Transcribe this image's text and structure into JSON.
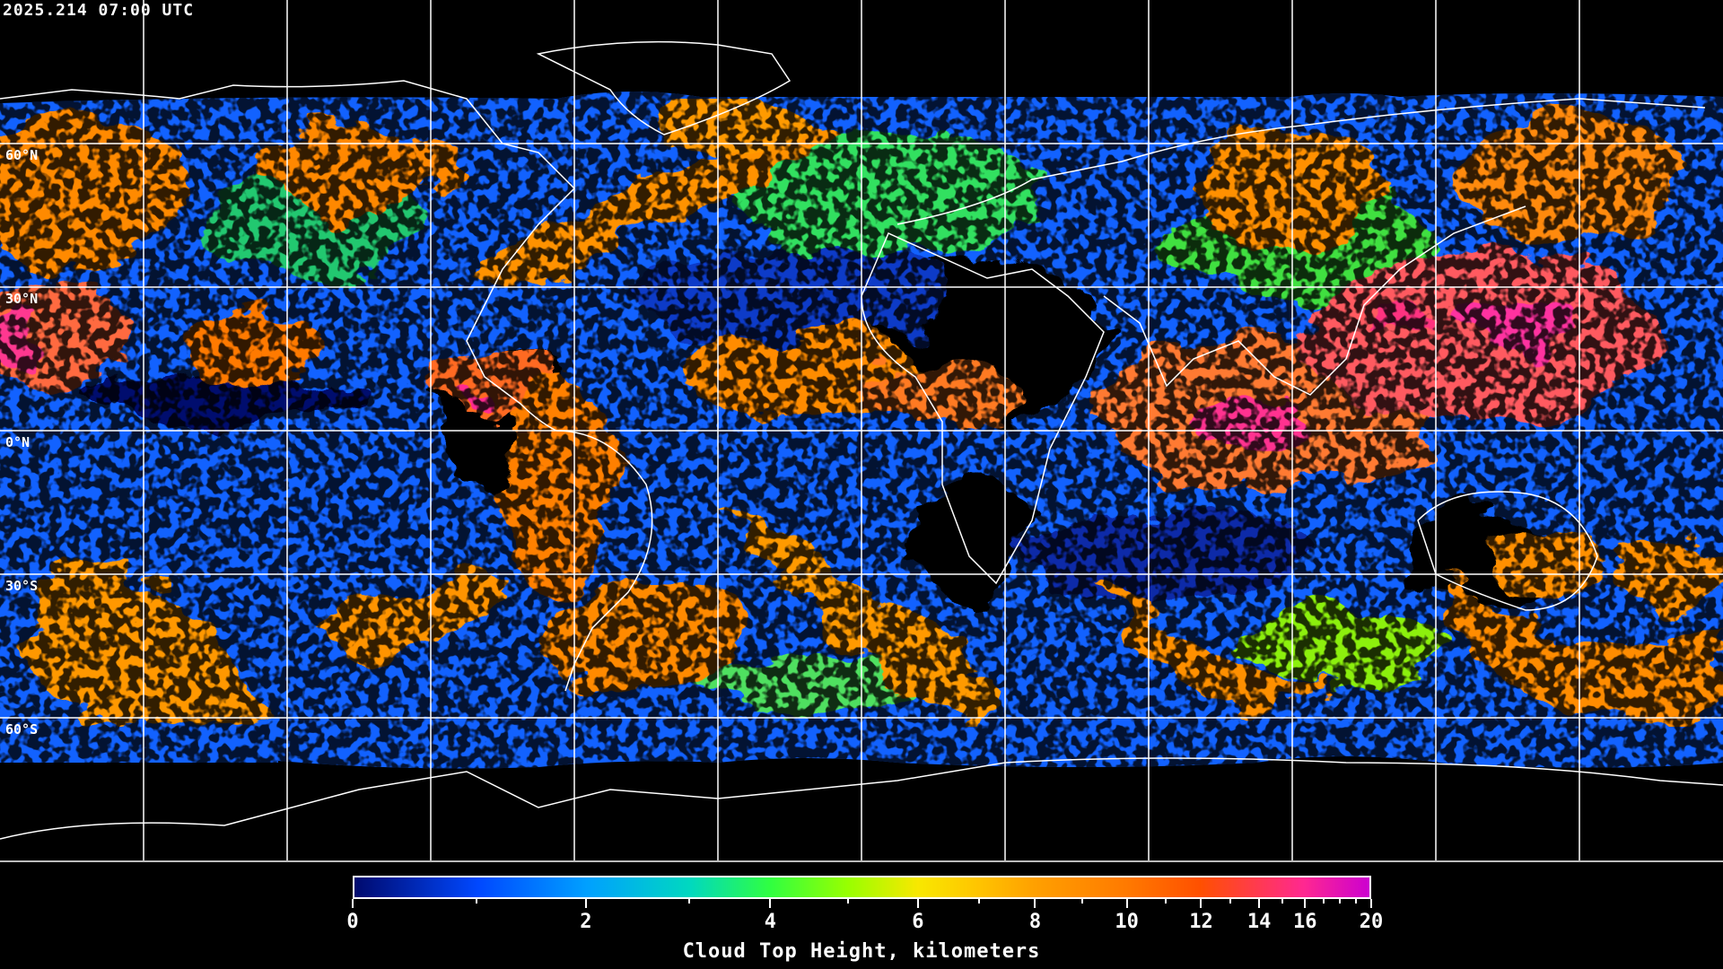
{
  "timestamp": "2025.214 07:00 UTC",
  "map": {
    "projection": "equirectangular",
    "grid_spacing_deg": 30,
    "lat_labels": [
      "60°N",
      "30°N",
      "0°N",
      "30°S",
      "60°S"
    ],
    "lat_values": [
      60,
      30,
      0,
      -30,
      -60
    ],
    "coastline_color": "#ffffff",
    "grid_color": "#ffffff",
    "background": "#000000"
  },
  "colorbar": {
    "title": "Cloud Top Height, kilometers",
    "min": 0,
    "max": 20,
    "major_ticks": [
      0,
      2,
      4,
      6,
      8,
      10,
      12,
      14,
      16,
      20
    ],
    "major_labels": [
      "0",
      "2",
      "4",
      "6",
      "8",
      "10",
      "12",
      "14",
      "16",
      "20"
    ],
    "minor_ticks": [
      1,
      3,
      5,
      7,
      9,
      11,
      13,
      15,
      17,
      18,
      19
    ],
    "colors": [
      {
        "value": 0,
        "color": "#000a6e"
      },
      {
        "value": 1,
        "color": "#0048ff"
      },
      {
        "value": 2,
        "color": "#00a0ff"
      },
      {
        "value": 3,
        "color": "#00d8c0"
      },
      {
        "value": 4,
        "color": "#30ff40"
      },
      {
        "value": 5,
        "color": "#98ff00"
      },
      {
        "value": 6,
        "color": "#f8e800"
      },
      {
        "value": 7,
        "color": "#ffc400"
      },
      {
        "value": 8,
        "color": "#ffa000"
      },
      {
        "value": 10,
        "color": "#ff7a00"
      },
      {
        "value": 12,
        "color": "#ff5000"
      },
      {
        "value": 14,
        "color": "#ff3a50"
      },
      {
        "value": 16,
        "color": "#ff2890"
      },
      {
        "value": 20,
        "color": "#cc00d0"
      }
    ]
  }
}
